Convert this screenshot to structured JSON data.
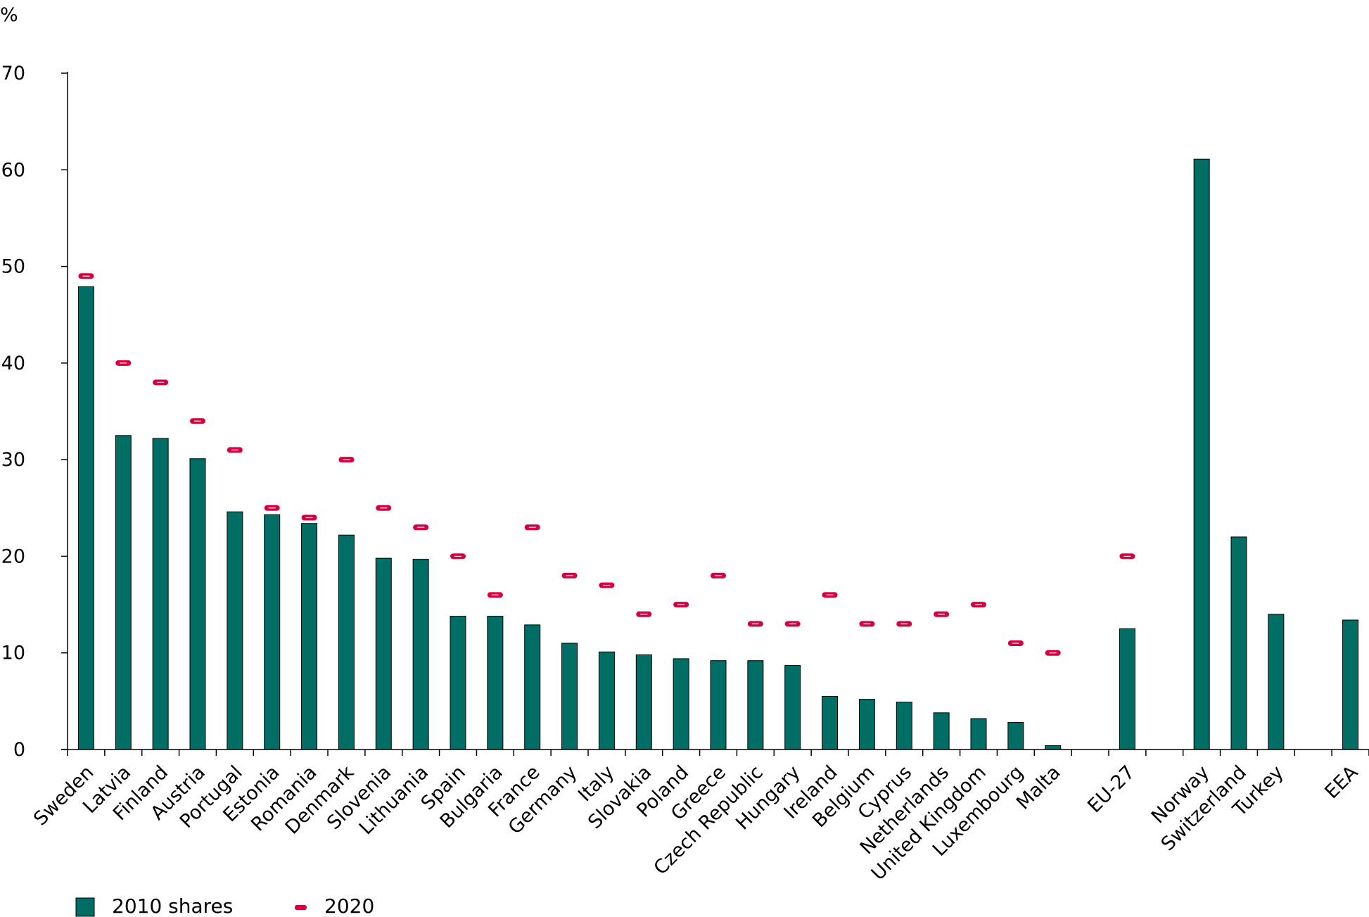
{
  "chart_data": {
    "type": "bar",
    "yunit_label": "%",
    "ylim": [
      0,
      70
    ],
    "yticks": [
      0,
      10,
      20,
      30,
      40,
      50,
      60,
      70
    ],
    "categories": [
      "Sweden",
      "Latvia",
      "Finland",
      "Austria",
      "Portugal",
      "Estonia",
      "Romania",
      "Denmark",
      "Slovenia",
      "Lithuania",
      "Spain",
      "Bulgaria",
      "France",
      "Germany",
      "Italy",
      "Slovakia",
      "Poland",
      "Greece",
      "Czech Republic",
      "Hungary",
      "Ireland",
      "Belgium",
      "Cyprus",
      "Netherlands",
      "United Kingdom",
      "Luxembourg",
      "Malta",
      "",
      "EU-27",
      "",
      "Norway",
      "Switzerland",
      "Turkey",
      "",
      "EEA"
    ],
    "series": [
      {
        "name": "2010 shares",
        "kind": "bar",
        "color": "#006E64",
        "values": [
          47.9,
          32.5,
          32.2,
          30.1,
          24.6,
          24.3,
          23.4,
          22.2,
          19.8,
          19.7,
          13.8,
          13.8,
          12.9,
          11.0,
          10.1,
          9.8,
          9.4,
          9.2,
          9.2,
          8.7,
          5.5,
          5.2,
          4.9,
          3.8,
          3.2,
          2.8,
          0.4,
          null,
          12.5,
          null,
          61.1,
          22.0,
          14.0,
          null,
          13.4
        ]
      },
      {
        "name": "2020",
        "kind": "marker",
        "color": "#D5003D",
        "values": [
          49,
          40,
          38,
          34,
          31,
          25,
          24,
          30,
          25,
          23,
          20,
          16,
          23,
          18,
          17,
          14,
          15,
          18,
          13,
          13,
          16,
          13,
          13,
          14,
          15,
          11,
          10,
          null,
          20,
          null,
          null,
          null,
          null,
          null,
          null
        ]
      }
    ],
    "legend": {
      "position": "bottom-left"
    }
  }
}
